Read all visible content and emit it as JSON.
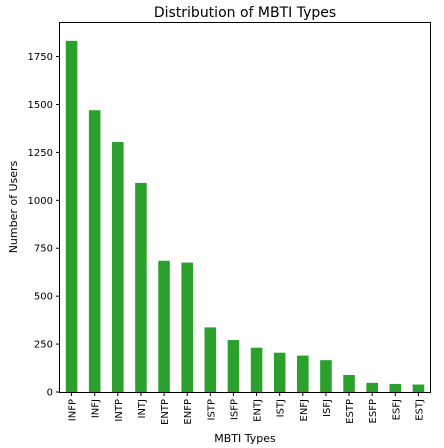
{
  "chart_data": {
    "type": "bar",
    "title": "Distribution of MBTI Types",
    "xlabel": "MBTI Types",
    "ylabel": "Number of Users",
    "categories": [
      "INFP",
      "INFJ",
      "INTP",
      "INTJ",
      "ENTP",
      "ENFP",
      "ISTP",
      "ISFP",
      "ENTJ",
      "ISTJ",
      "ENFJ",
      "ISFJ",
      "ESTP",
      "ESFP",
      "ESFJ",
      "ESTJ"
    ],
    "values": [
      1832,
      1470,
      1304,
      1091,
      685,
      675,
      337,
      271,
      231,
      205,
      190,
      166,
      89,
      48,
      42,
      39
    ],
    "yticks": [
      0,
      250,
      500,
      750,
      1000,
      1250,
      1500,
      1750
    ],
    "ylim": [
      0,
      1925
    ],
    "bar_color": "#2ca02c",
    "grid": false,
    "legend": "none"
  }
}
